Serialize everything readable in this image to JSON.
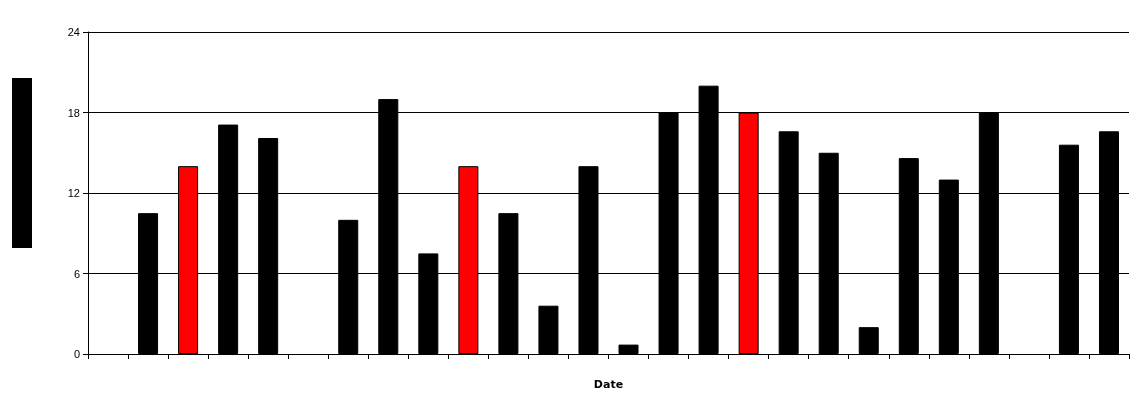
{
  "chart_data": {
    "type": "bar",
    "xlabel": "Date",
    "categories": [
      null,
      null,
      null,
      null,
      null,
      null,
      null,
      null,
      null,
      null,
      null,
      null,
      null,
      null,
      null,
      null,
      null,
      null,
      null,
      null,
      null,
      null,
      null,
      null,
      null,
      null
    ],
    "values": [
      null,
      10.5,
      14,
      17.1,
      16.1,
      null,
      10,
      19,
      7.5,
      14,
      10.5,
      3.6,
      14,
      0.7,
      18,
      20,
      18,
      16.6,
      15,
      2,
      14.6,
      13,
      18,
      null,
      15.6,
      16.6
    ],
    "colors": [
      "#000000",
      "#000000",
      "#ff0000",
      "#000000",
      "#000000",
      "#000000",
      "#000000",
      "#000000",
      "#000000",
      "#ff0000",
      "#000000",
      "#000000",
      "#000000",
      "#000000",
      "#000000",
      "#000000",
      "#ff0000",
      "#000000",
      "#000000",
      "#000000",
      "#000000",
      "#000000",
      "#000000",
      "#000000",
      "#000000",
      "#000000"
    ],
    "ylim": [
      0,
      24
    ],
    "yticks": [
      0,
      6,
      12,
      18,
      24
    ],
    "grid": "y",
    "tick_labels": "y"
  }
}
